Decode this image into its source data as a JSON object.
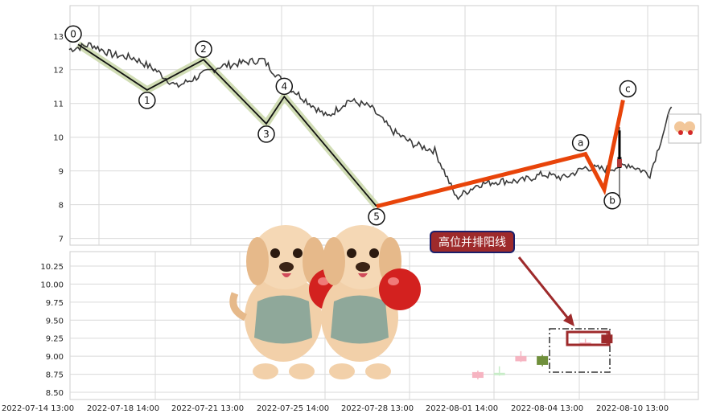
{
  "chart_data": [
    {
      "type": "line",
      "panel": "upper",
      "ylim": [
        6.8,
        13.9
      ],
      "y_ticks": [
        7,
        8,
        9,
        10,
        11,
        12,
        13
      ],
      "series": [
        {
          "style": "price",
          "color": "#3a3a3a",
          "x": [
            "2022-07-14",
            "2022-07-15",
            "2022-07-16",
            "2022-07-17",
            "2022-07-18",
            "2022-07-19",
            "2022-07-20",
            "2022-07-21",
            "2022-07-22",
            "2022-07-23",
            "2022-07-24",
            "2022-07-25",
            "2022-07-26",
            "2022-07-27",
            "2022-07-28",
            "2022-07-29",
            "2022-07-30",
            "2022-07-31",
            "2022-08-01",
            "2022-08-02",
            "2022-08-03",
            "2022-08-04",
            "2022-08-05",
            "2022-08-06",
            "2022-08-07",
            "2022-08-08",
            "2022-08-09",
            "2022-08-10",
            "2022-08-11"
          ],
          "y": [
            12.6,
            12.75,
            12.45,
            12.35,
            12.0,
            11.5,
            11.8,
            12.1,
            12.2,
            12.3,
            11.6,
            11.1,
            10.6,
            11.1,
            10.9,
            10.2,
            9.8,
            9.6,
            8.2,
            8.6,
            8.7,
            8.7,
            8.9,
            8.8,
            9.1,
            9.05,
            9.2,
            8.9,
            10.9
          ]
        },
        {
          "style": "wave",
          "color": "#111111",
          "labels": [
            "0",
            "1",
            "2",
            "3",
            "4",
            "5"
          ],
          "x": [
            "2022-07-14 22:00",
            "2022-07-18 03:00",
            "2022-07-20 18:00",
            "2022-07-23 16:00",
            "2022-07-24 12:00",
            "2022-07-28 19:00"
          ],
          "y": [
            12.75,
            11.4,
            12.3,
            10.4,
            11.2,
            7.95
          ]
        },
        {
          "style": "correction",
          "color": "#e8440a",
          "labels": [
            "a",
            "b",
            "c"
          ],
          "x": [
            "2022-07-28 19:00",
            "2022-08-07 12:00",
            "2022-08-08 09:00",
            "2022-08-09 06:00"
          ],
          "y": [
            7.95,
            9.5,
            8.45,
            11.1
          ]
        }
      ],
      "small_candle": {
        "x": "2022-08-09 02:00",
        "open": 9.4,
        "close": 9.1,
        "high": 10.3,
        "low": 8.0
      }
    },
    {
      "type": "bar",
      "panel": "lower",
      "ylim": [
        8.4,
        10.45
      ],
      "y_ticks": [
        8.5,
        8.75,
        9.0,
        9.25,
        9.5,
        9.75,
        10.0,
        10.25
      ],
      "x_ticks": [
        "2022-07-14 13:00",
        "2022-07-18 14:00",
        "2022-07-21 13:00",
        "2022-07-25 14:00",
        "2022-07-28 13:00",
        "2022-08-01 14:00",
        "2022-08-04 13:00",
        "2022-08-10 13:00"
      ],
      "candles": [
        {
          "x": "2022-08-02",
          "open": 8.7,
          "close": 8.78,
          "high": 8.8,
          "low": 8.68,
          "color": "#f6b4c1"
        },
        {
          "x": "2022-08-03",
          "open": 8.75,
          "close": 8.77,
          "high": 8.86,
          "low": 8.73,
          "color": "#c8ecc8"
        },
        {
          "x": "2022-08-04",
          "open": 8.93,
          "close": 9.0,
          "high": 9.07,
          "low": 8.92,
          "color": "#f6b4c1"
        },
        {
          "x": "2022-08-05",
          "open": 8.88,
          "close": 9.0,
          "high": 9.02,
          "low": 8.86,
          "color": "#6f8f3b"
        },
        {
          "x": "2022-08-07",
          "open": 9.17,
          "close": 9.19,
          "high": 9.24,
          "low": 9.14,
          "color": "#f6b4c1"
        },
        {
          "x": "2022-08-08",
          "open": 9.18,
          "close": 9.3,
          "high": 9.33,
          "low": 9.16,
          "color": "#9e2a2b"
        }
      ],
      "annotation": {
        "text": "高位并排阳线",
        "bg": "#9e2a2b",
        "border": "#1a1f6b",
        "arrow_color": "#9e2a2b"
      }
    }
  ],
  "colors": {
    "grid": "#d9d9d9",
    "wave_fill": "#c9d7a8",
    "correction": "#e8440a"
  }
}
